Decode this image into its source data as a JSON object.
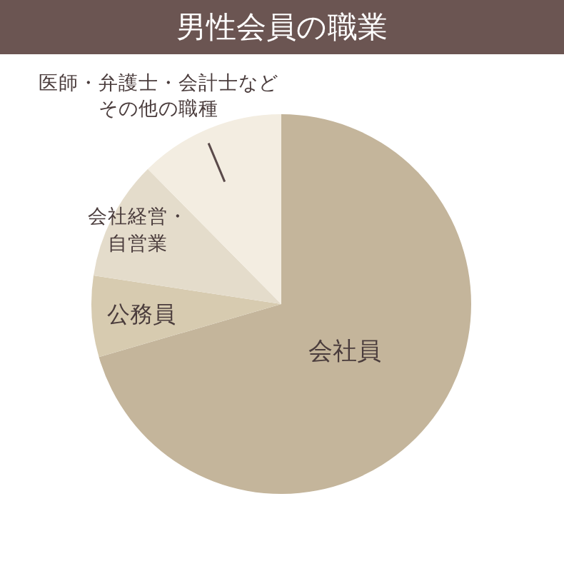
{
  "chart_data": {
    "type": "pie",
    "title": "男性会員の職業",
    "categories": [
      "会社員",
      "公務員",
      "会社経営・自営業",
      "医師・弁護士・会計士などその他の職種"
    ],
    "values": [
      70.5,
      6.9,
      10.2,
      12.4
    ],
    "colors": [
      "#c4b59b",
      "#d7cbb0",
      "#e4dccb",
      "#f3ede1"
    ]
  }
}
